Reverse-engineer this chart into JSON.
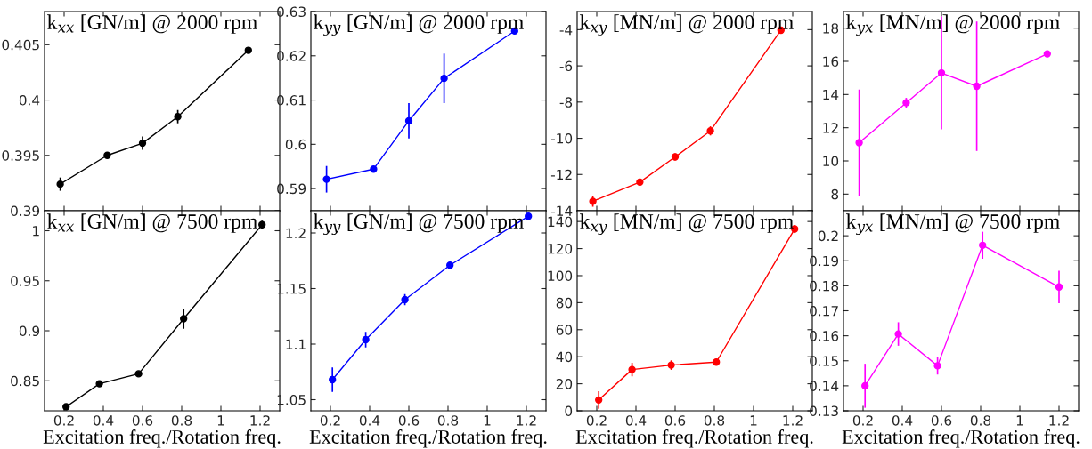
{
  "chart_data": [
    {
      "type": "line",
      "title": "k$_{xx}$ [GN/m] @ 2000 rpm",
      "x": [
        0.18,
        0.42,
        0.6,
        0.78,
        1.14
      ],
      "xlim": [
        0.1,
        1.3
      ],
      "xticks": [
        0.2,
        0.4,
        0.6,
        0.8,
        1,
        1.2
      ],
      "ylim": [
        0.39,
        0.408
      ],
      "yticks": [
        0.39,
        0.395,
        0.4,
        0.405
      ],
      "tick_labels": "y",
      "marker": "circle",
      "line_style": "solid",
      "grid": false,
      "series": [
        {
          "color": "#000000",
          "values": [
            0.3924,
            0.395,
            0.3961,
            0.3985,
            0.4045
          ],
          "errors": [
            0.0006,
            0.0002,
            0.0006,
            0.0006,
            0.0001
          ]
        }
      ]
    },
    {
      "type": "line",
      "title": "k$_{yy}$ [GN/m] @ 2000 rpm",
      "x": [
        0.18,
        0.42,
        0.6,
        0.78,
        1.14
      ],
      "xlim": [
        0.1,
        1.3
      ],
      "xticks": [
        0.2,
        0.4,
        0.6,
        0.8,
        1,
        1.2
      ],
      "ylim": [
        0.585,
        0.63
      ],
      "yticks": [
        0.59,
        0.6,
        0.61,
        0.62,
        0.63
      ],
      "tick_labels": "y",
      "marker": "circle",
      "line_style": "solid",
      "grid": false,
      "series": [
        {
          "color": "#0000ff",
          "values": [
            0.5921,
            0.5944,
            0.6053,
            0.6149,
            0.6256
          ],
          "errors": [
            0.003,
            0.0003,
            0.004,
            0.0056,
            0.0002
          ]
        }
      ]
    },
    {
      "type": "line",
      "title": "k$_{xy}$ [MN/m] @ 2000 rpm",
      "x": [
        0.18,
        0.42,
        0.6,
        0.78,
        1.14
      ],
      "xlim": [
        0.1,
        1.3
      ],
      "xticks": [
        0.2,
        0.4,
        0.6,
        0.8,
        1,
        1.2
      ],
      "ylim": [
        -14,
        -3
      ],
      "yticks": [
        -14,
        -12,
        -10,
        -8,
        -6,
        -4
      ],
      "tick_labels": "y",
      "marker": "circle",
      "line_style": "solid",
      "grid": false,
      "series": [
        {
          "color": "#ff0000",
          "values": [
            -13.48,
            -12.42,
            -11.03,
            -9.59,
            -4.03
          ],
          "errors": [
            0.3,
            0.2,
            0.2,
            0.25,
            0.1
          ]
        }
      ]
    },
    {
      "type": "line",
      "title": "k$_{yx}$ [MN/m] @ 2000 rpm",
      "x": [
        0.18,
        0.42,
        0.6,
        0.78,
        1.14
      ],
      "xlim": [
        0.1,
        1.3
      ],
      "xticks": [
        0.2,
        0.4,
        0.6,
        0.8,
        1,
        1.2
      ],
      "ylim": [
        7,
        19
      ],
      "yticks": [
        8,
        10,
        12,
        14,
        16,
        18
      ],
      "tick_labels": "y",
      "marker": "circle",
      "line_style": "solid",
      "grid": false,
      "series": [
        {
          "color": "#ff00ff",
          "values": [
            11.1,
            13.5,
            15.3,
            14.5,
            16.45
          ],
          "errors": [
            3.2,
            0.3,
            3.4,
            3.9,
            0.2
          ]
        }
      ]
    },
    {
      "type": "line",
      "title": "k$_{xx}$ [GN/m] @ 7500 rpm",
      "xlabel": "Excitation freq./Rotation freq.",
      "x": [
        0.21,
        0.38,
        0.58,
        0.81,
        1.21
      ],
      "xlim": [
        0.1,
        1.3
      ],
      "xticks": [
        0.2,
        0.4,
        0.6,
        0.8,
        1,
        1.2
      ],
      "ylim": [
        0.82,
        1.02
      ],
      "yticks": [
        0.85,
        0.9,
        0.95,
        1
      ],
      "marker": "circle",
      "line_style": "solid",
      "grid": false,
      "series": [
        {
          "color": "#000000",
          "values": [
            0.824,
            0.847,
            0.857,
            0.912,
            1.006
          ],
          "errors": [
            0.003,
            0.003,
            0.002,
            0.01,
            0.004
          ]
        }
      ]
    },
    {
      "type": "line",
      "title": "k$_{yy}$ [GN/m] @ 7500 rpm",
      "xlabel": "Excitation freq./Rotation freq.",
      "x": [
        0.21,
        0.38,
        0.58,
        0.81,
        1.21
      ],
      "xlim": [
        0.1,
        1.3
      ],
      "xticks": [
        0.2,
        0.4,
        0.6,
        0.8,
        1,
        1.2
      ],
      "ylim": [
        1.04,
        1.22
      ],
      "yticks": [
        1.05,
        1.1,
        1.15,
        1.2
      ],
      "marker": "circle",
      "line_style": "solid",
      "grid": false,
      "series": [
        {
          "color": "#0000ff",
          "values": [
            1.068,
            1.104,
            1.14,
            1.171,
            1.215
          ],
          "errors": [
            0.011,
            0.007,
            0.005,
            0.003,
            0.001
          ]
        }
      ]
    },
    {
      "type": "line",
      "title": "k$_{xy}$ [MN/m] @ 7500 rpm",
      "xlabel": "Excitation freq./Rotation freq.",
      "x": [
        0.21,
        0.38,
        0.58,
        0.81,
        1.21
      ],
      "xlim": [
        0.1,
        1.3
      ],
      "xticks": [
        0.2,
        0.4,
        0.6,
        0.8,
        1,
        1.2
      ],
      "ylim": [
        0,
        148
      ],
      "yticks": [
        0,
        20,
        40,
        60,
        80,
        100,
        120,
        140
      ],
      "marker": "circle",
      "line_style": "solid",
      "grid": false,
      "series": [
        {
          "color": "#ff0000",
          "values": [
            8,
            30.5,
            33.8,
            36,
            134.5
          ],
          "errors": [
            6.5,
            5,
            3.5,
            2.5,
            3
          ]
        }
      ]
    },
    {
      "type": "line",
      "title": "k$_{yx}$ [MN/m] @ 7500 rpm",
      "xlabel": "Excitation freq./Rotation freq.",
      "x": [
        0.21,
        0.38,
        0.58,
        0.81,
        1.2
      ],
      "xlim": [
        0.1,
        1.3
      ],
      "xticks": [
        0.2,
        0.4,
        0.6,
        0.8,
        1,
        1.2
      ],
      "ylim": [
        0.13,
        0.21
      ],
      "yticks": [
        0.13,
        0.14,
        0.15,
        0.16,
        0.17,
        0.18,
        0.19,
        0.2
      ],
      "marker": "circle",
      "line_style": "solid",
      "grid": false,
      "series": [
        {
          "color": "#ff00ff",
          "values": [
            0.14,
            0.1607,
            0.148,
            0.1962,
            0.1795
          ],
          "errors": [
            0.0088,
            0.0047,
            0.0035,
            0.0054,
            0.0065
          ]
        }
      ]
    }
  ]
}
